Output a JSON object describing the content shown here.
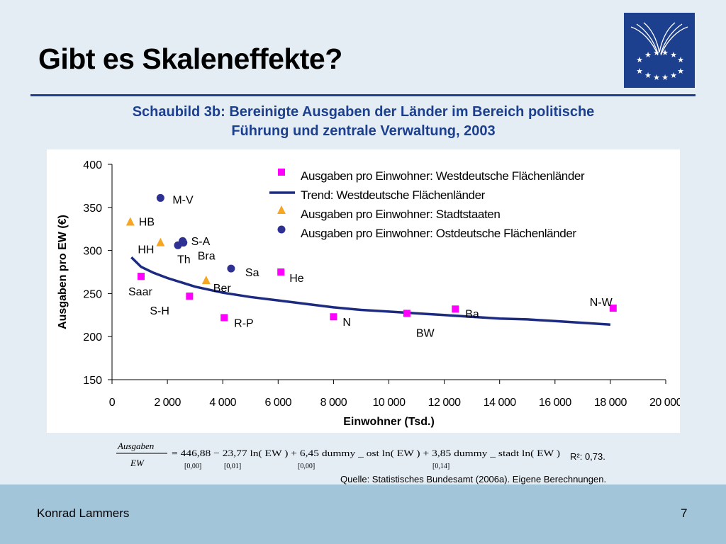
{
  "slide": {
    "title": "Gibt es Skaleneffekte?",
    "subtitle_line1": "Schaubild 3b: Bereinigte Ausgaben der Länder im Bereich politische",
    "subtitle_line2": "Führung und zentrale Verwaltung, 2003",
    "r_squared": "R²: 0,73.",
    "source": "Quelle: Statistisches Bundesamt (2006a). Eigene Berechnungen.",
    "author": "Konrad Lammers",
    "page_number": "7",
    "accent_color": "#1c3f8e",
    "footer_color": "#a3c5da",
    "logo_icon": "eu-stars-logo-icon"
  },
  "formula": {
    "numerator": "Ausgaben",
    "denominator": "EW",
    "expression": "= 446,88 − 23,77 ln( EW ) + 6,45 dummy _ ost ln( EW ) + 3,85 dummy _ stadt ln( EW )",
    "p_values": [
      "[0,00]",
      "[0,01]",
      "[0,00]",
      "[0,14]"
    ]
  },
  "chart_data": {
    "type": "scatter",
    "title": "",
    "xlabel": "Einwohner (Tsd.)",
    "ylabel": "Ausgaben pro EW (€)",
    "xlim": [
      0,
      20000
    ],
    "ylim": [
      150,
      400
    ],
    "x_ticks": [
      0,
      2000,
      4000,
      6000,
      8000,
      10000,
      12000,
      14000,
      16000,
      18000,
      20000
    ],
    "x_tick_labels": [
      "0",
      "2 000",
      "4 000",
      "6 000",
      "8 000",
      "10 000",
      "12 000",
      "14 000",
      "16 000",
      "18 000",
      "20 000"
    ],
    "y_ticks": [
      150,
      200,
      250,
      300,
      350,
      400
    ],
    "y_tick_labels": [
      "150",
      "200",
      "250",
      "300",
      "350",
      "400"
    ],
    "grid": false,
    "legend_position": "top-right",
    "series": [
      {
        "name": "Ausgaben pro Einwohner: Westdeutsche Flächenländer",
        "marker": "square",
        "color": "#ff00ff",
        "points": [
          {
            "label": "Saar",
            "x": 1050,
            "y": 270
          },
          {
            "label": "S-H",
            "x": 2800,
            "y": 247
          },
          {
            "label": "R-P",
            "x": 4050,
            "y": 222
          },
          {
            "label": "He",
            "x": 6100,
            "y": 275
          },
          {
            "label": "N",
            "x": 8000,
            "y": 223
          },
          {
            "label": "BW",
            "x": 10650,
            "y": 227
          },
          {
            "label": "Ba",
            "x": 12400,
            "y": 232
          },
          {
            "label": "N-W",
            "x": 18100,
            "y": 233
          }
        ]
      },
      {
        "name": "Trend: Westdeutsche Flächenländer",
        "marker": "line",
        "color": "#1c2a80",
        "points": [
          {
            "x": 700,
            "y": 292
          },
          {
            "x": 1050,
            "y": 281
          },
          {
            "x": 1500,
            "y": 274
          },
          {
            "x": 2000,
            "y": 268
          },
          {
            "x": 2500,
            "y": 263
          },
          {
            "x": 3000,
            "y": 258
          },
          {
            "x": 4000,
            "y": 251
          },
          {
            "x": 5000,
            "y": 246
          },
          {
            "x": 6000,
            "y": 242
          },
          {
            "x": 7000,
            "y": 238
          },
          {
            "x": 8000,
            "y": 234
          },
          {
            "x": 9000,
            "y": 231
          },
          {
            "x": 10000,
            "y": 229
          },
          {
            "x": 11000,
            "y": 227
          },
          {
            "x": 12000,
            "y": 225
          },
          {
            "x": 13000,
            "y": 223
          },
          {
            "x": 14000,
            "y": 221
          },
          {
            "x": 15000,
            "y": 220
          },
          {
            "x": 16000,
            "y": 218
          },
          {
            "x": 17000,
            "y": 216
          },
          {
            "x": 18000,
            "y": 214
          }
        ]
      },
      {
        "name": "Ausgaben pro Einwohner: Stadtstaaten",
        "marker": "triangle",
        "color": "#f5a623",
        "points": [
          {
            "label": "HB",
            "x": 660,
            "y": 333
          },
          {
            "label": "HH",
            "x": 1750,
            "y": 309
          },
          {
            "label": "Ber",
            "x": 3400,
            "y": 265
          }
        ]
      },
      {
        "name": "Ausgaben pro Einwohner: Ostdeutsche Flächenländer",
        "marker": "circle",
        "color": "#2e3192",
        "points": [
          {
            "label": "M-V",
            "x": 1750,
            "y": 361
          },
          {
            "label": "S-A",
            "x": 2550,
            "y": 311
          },
          {
            "label": "Bra",
            "x": 2580,
            "y": 309
          },
          {
            "label": "Th",
            "x": 2380,
            "y": 306
          },
          {
            "label": "Sa",
            "x": 4300,
            "y": 279
          }
        ]
      }
    ],
    "label_offsets_note": ""
  }
}
